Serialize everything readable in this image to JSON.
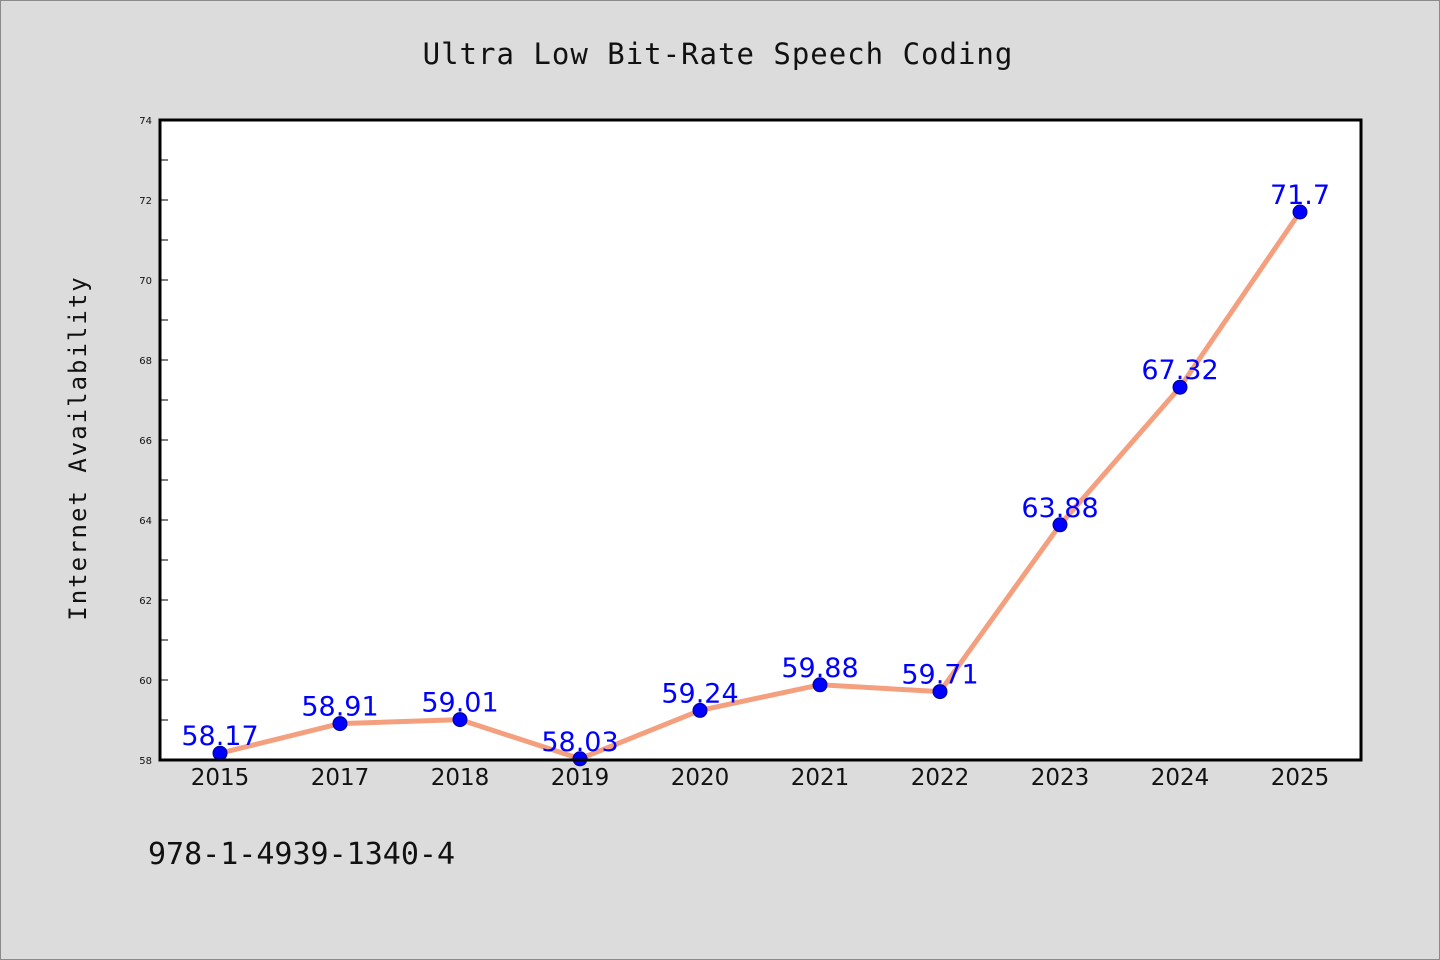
{
  "chart_data": {
    "type": "line",
    "title": "Ultra Low Bit-Rate Speech Coding",
    "xlabel": "",
    "ylabel": "Internet Availability",
    "categories": [
      "2015",
      "2017",
      "2018",
      "2019",
      "2020",
      "2021",
      "2022",
      "2023",
      "2024",
      "2025"
    ],
    "series": [
      {
        "values": [
          58.17,
          58.91,
          59.01,
          58.03,
          59.24,
          59.88,
          59.71,
          63.88,
          67.32,
          71.7
        ]
      }
    ],
    "data_labels": [
      "58.17",
      "58.91",
      "59.01",
      "58.03",
      "59.24",
      "59.88",
      "59.71",
      "63.88",
      "67.32",
      "71.7"
    ],
    "ylim": [
      58,
      74
    ],
    "y_ticks": [
      "58",
      "60",
      "62",
      "64",
      "66",
      "68",
      "70",
      "72",
      "74"
    ],
    "grid": false,
    "legend": "none",
    "colors": {
      "line": "#f4a07f",
      "marker": "#0000ff",
      "label": "#0000ff",
      "background": "#dcdcdc",
      "plot_background": "#ffffff"
    }
  },
  "footer": {
    "isbn": "978-1-4939-1340-4"
  }
}
